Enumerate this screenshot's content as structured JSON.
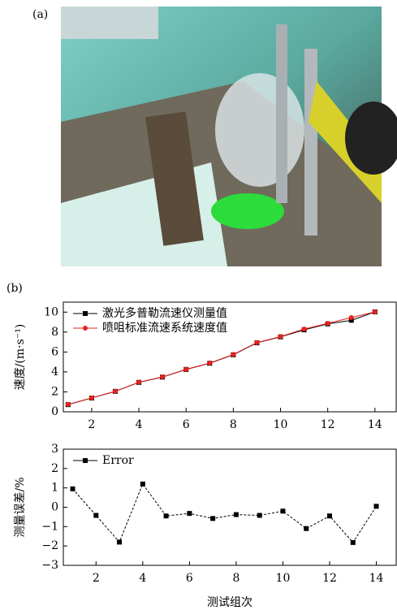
{
  "panel_labels": {
    "a": "(a)",
    "b": "(b)"
  },
  "chart_data": [
    {
      "type": "line",
      "ylabel": "速度/(m·s⁻¹)",
      "x": [
        1,
        2,
        3,
        4,
        5,
        6,
        7,
        8,
        9,
        10,
        11,
        12,
        13,
        14
      ],
      "xlim": [
        0.8,
        14.9
      ],
      "xticks": [
        2,
        4,
        6,
        8,
        10,
        12,
        14
      ],
      "ylim": [
        0,
        11
      ],
      "yticks": [
        0,
        2,
        4,
        6,
        8,
        10
      ],
      "legend": "upper-left",
      "series": [
        {
          "name": "激光多普勒流速仪测量值",
          "color": "#000000",
          "marker": "square",
          "line_style": "solid",
          "values": [
            0.72,
            1.38,
            2.05,
            2.95,
            3.48,
            4.25,
            4.87,
            5.72,
            6.92,
            7.52,
            8.22,
            8.82,
            9.18,
            10.02
          ]
        },
        {
          "name": "喷咀标准流速系统速度值",
          "color": "#e8201d",
          "marker": "circle",
          "line_style": "solid",
          "values": [
            0.74,
            1.4,
            2.06,
            2.97,
            3.5,
            4.27,
            4.89,
            5.75,
            6.95,
            7.55,
            8.3,
            8.87,
            9.45,
            10.02
          ]
        }
      ]
    },
    {
      "type": "line",
      "ylabel": "测量误差/%",
      "xlabel": "测试组次",
      "x": [
        1,
        2,
        3,
        4,
        5,
        6,
        7,
        8,
        9,
        10,
        11,
        12,
        13,
        14
      ],
      "xlim": [
        0.6,
        14.85
      ],
      "xticks": [
        2,
        4,
        6,
        8,
        10,
        12,
        14
      ],
      "ylim": [
        -3,
        3
      ],
      "yticks": [
        {
          "value": -3,
          "label": "−3"
        },
        {
          "value": -2,
          "label": "−2"
        },
        {
          "value": -1,
          "label": "−1"
        },
        0,
        1,
        2,
        3
      ],
      "legend": "upper-left",
      "series": [
        {
          "name": "Error",
          "color": "#000000",
          "marker": "square",
          "line_style": "dashed",
          "values": [
            0.95,
            -0.42,
            -1.8,
            1.2,
            -0.45,
            -0.32,
            -0.58,
            -0.38,
            -0.42,
            -0.2,
            -1.1,
            -0.45,
            -1.82,
            0.05
          ]
        }
      ]
    }
  ]
}
